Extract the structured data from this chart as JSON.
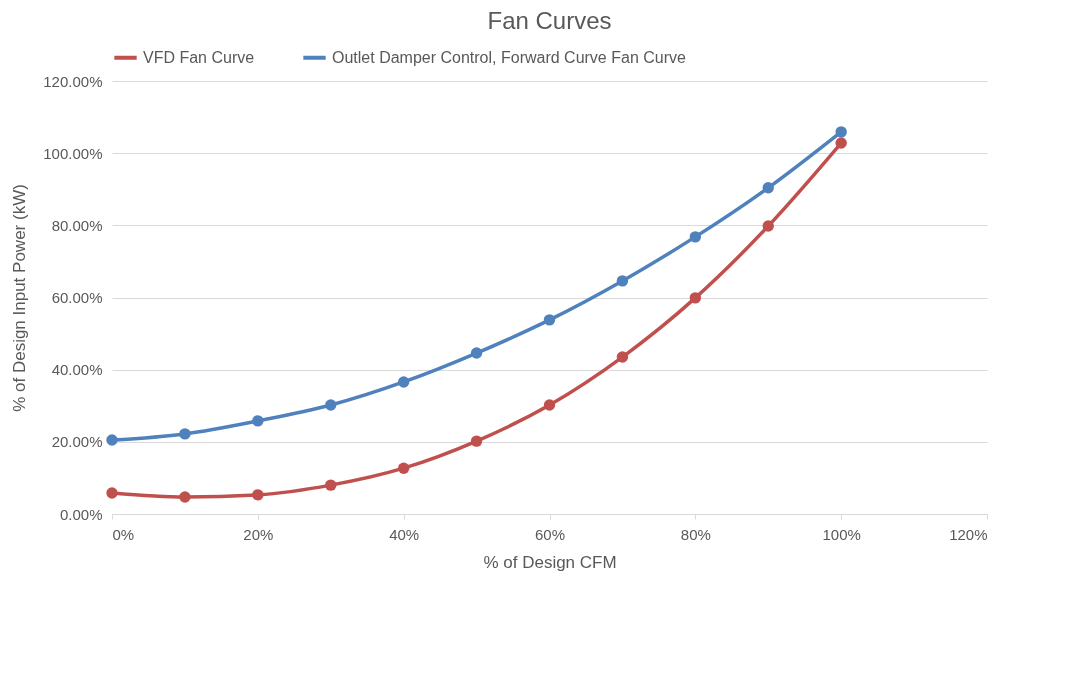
{
  "chart_data": {
    "type": "line",
    "title": "Fan Curves",
    "xlabel": "% of Design CFM",
    "ylabel": "% of Design Input Power (kW)",
    "x": [
      0,
      10,
      20,
      30,
      40,
      50,
      60,
      70,
      80,
      90,
      100
    ],
    "series": [
      {
        "name": "VFD Fan Curve",
        "color": "#c0504d",
        "values": [
          5.8,
          4.7,
          5.3,
          8.0,
          12.7,
          20.2,
          30.2,
          43.5,
          59.9,
          79.8,
          102.8
        ]
      },
      {
        "name": "Outlet Damper Control, Forward Curve Fan Curve",
        "color": "#4f81bd",
        "values": [
          20.5,
          22.2,
          25.8,
          30.2,
          36.6,
          44.6,
          53.8,
          64.6,
          76.8,
          90.4,
          105.9
        ]
      }
    ],
    "xlim": [
      0,
      120
    ],
    "xticks": [
      {
        "value": 0,
        "label": "0%"
      },
      {
        "value": 20,
        "label": "20%"
      },
      {
        "value": 40,
        "label": "40%"
      },
      {
        "value": 60,
        "label": "60%"
      },
      {
        "value": 80,
        "label": "80%"
      },
      {
        "value": 100,
        "label": "100%"
      },
      {
        "value": 120,
        "label": "120%"
      }
    ],
    "ylim": [
      0,
      120
    ],
    "yticks": [
      {
        "value": 0,
        "label": "0.00%"
      },
      {
        "value": 20,
        "label": "20.00%"
      },
      {
        "value": 40,
        "label": "40.00%"
      },
      {
        "value": 60,
        "label": "60.00%"
      },
      {
        "value": 80,
        "label": "80.00%"
      },
      {
        "value": 100,
        "label": "100.00%"
      },
      {
        "value": 120,
        "label": "120.00%"
      }
    ],
    "grid": "y",
    "legend": "top",
    "marker": "circle",
    "line_style": "solid"
  }
}
